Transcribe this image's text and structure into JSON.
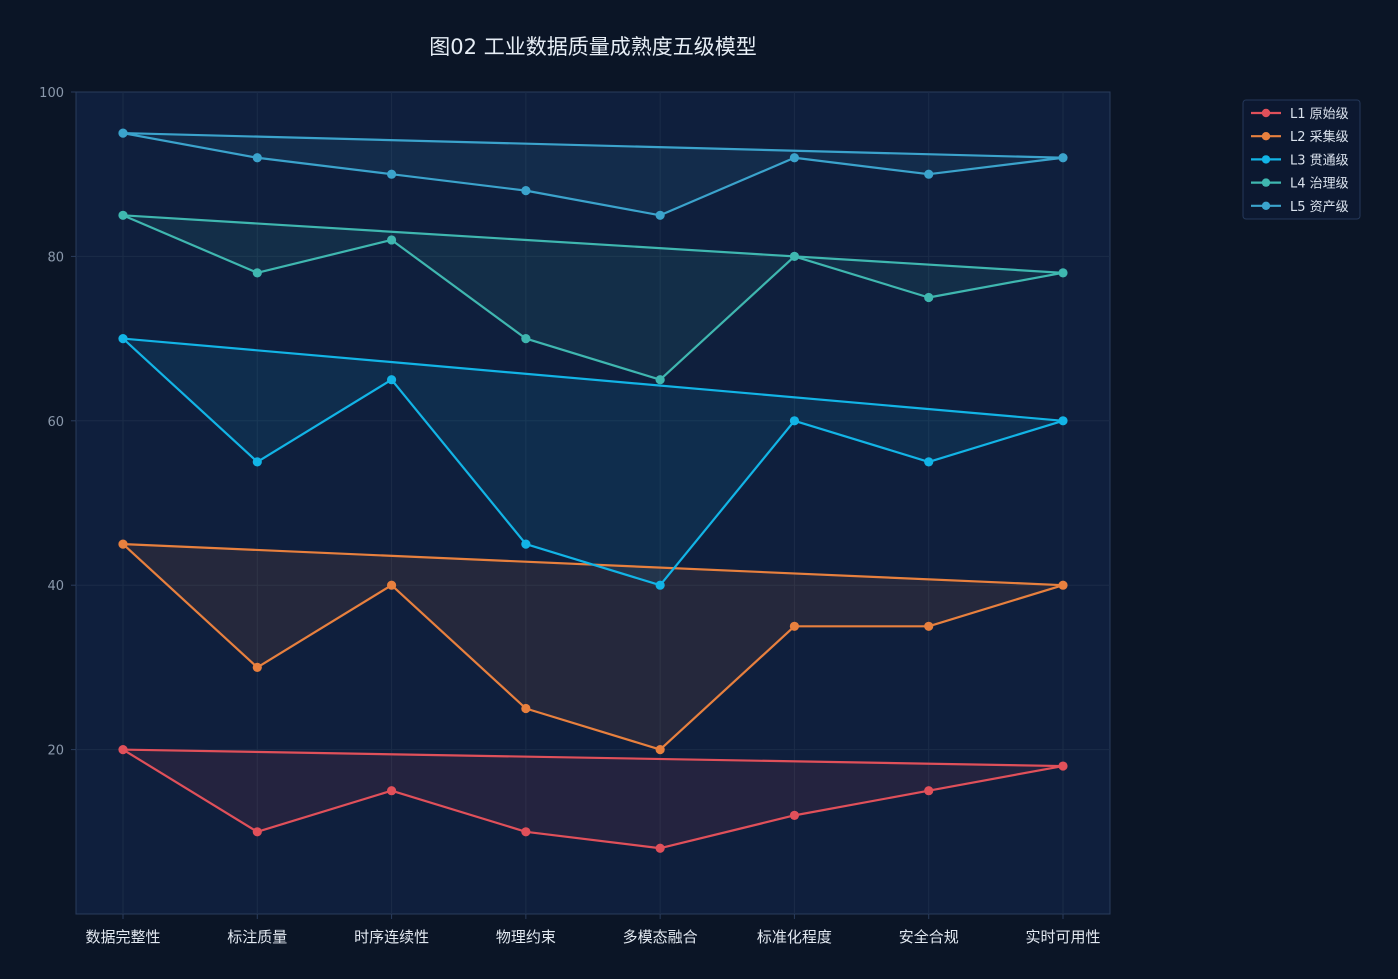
{
  "chart_data": {
    "type": "line",
    "title": "图02 工业数据质量成熟度五级模型",
    "xlabel": "",
    "ylabel": "",
    "categories": [
      "数据完整性",
      "标注质量",
      "时序连续性",
      "物理约束",
      "多模态融合",
      "标准化程度",
      "安全合规",
      "实时可用性"
    ],
    "ylim": [
      0,
      100
    ],
    "yticks": [
      20,
      40,
      60,
      80,
      100
    ],
    "grid": true,
    "legend_position": "top-right",
    "colors": {
      "background": "#0b1526",
      "plot_background": "#0f1f3d",
      "grid": "#1b2c48",
      "axis": "#2a3c5c"
    },
    "series": [
      {
        "name": "L1 原始级",
        "color": "#e0505a",
        "values": [
          20,
          10,
          15,
          10,
          8,
          12,
          15,
          18
        ]
      },
      {
        "name": "L2 采集级",
        "color": "#e8803e",
        "values": [
          45,
          30,
          40,
          25,
          20,
          35,
          35,
          40
        ]
      },
      {
        "name": "L3 贯通级",
        "color": "#12b4e6",
        "values": [
          70,
          55,
          65,
          45,
          40,
          60,
          55,
          60
        ]
      },
      {
        "name": "L4 治理级",
        "color": "#3fb7b0",
        "values": [
          85,
          78,
          82,
          70,
          65,
          80,
          75,
          78
        ]
      },
      {
        "name": "L5 资产级",
        "color": "#3ba3cc",
        "values": [
          95,
          92,
          90,
          88,
          85,
          92,
          90,
          92
        ]
      }
    ]
  }
}
